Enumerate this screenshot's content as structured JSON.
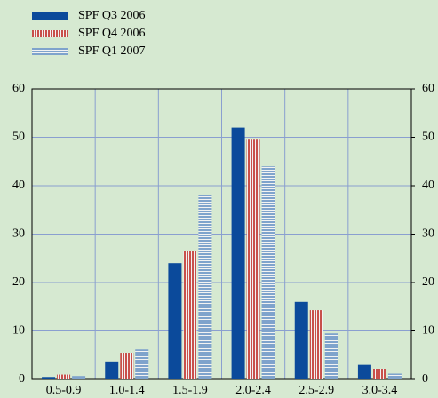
{
  "chart_data": {
    "type": "bar",
    "categories": [
      "0.5-0.9",
      "1.0-1.4",
      "1.5-1.9",
      "2.0-2.4",
      "2.5-2.9",
      "3.0-3.4"
    ],
    "series": [
      {
        "name": "SPF Q3 2006",
        "color": "#0b4a9b",
        "hatch": "none",
        "values": [
          0.5,
          3.7,
          24,
          52,
          16,
          3
        ]
      },
      {
        "name": "SPF Q4 2006",
        "color": "#c8504b",
        "hatch": "vertical",
        "values": [
          1,
          5.5,
          26.5,
          49.5,
          14.3,
          2.2
        ]
      },
      {
        "name": "SPF Q1 2007",
        "color": "#7fa3cc",
        "hatch": "horizontal",
        "values": [
          0.7,
          6.2,
          38,
          44,
          9.5,
          1.2
        ]
      }
    ],
    "ylim": [
      0,
      60
    ],
    "yticks": [
      0,
      10,
      20,
      30,
      40,
      50,
      60
    ],
    "y2lim": [
      0,
      60
    ],
    "y2ticks": [
      0,
      10,
      20,
      30,
      40,
      50,
      60
    ],
    "grid": true,
    "legend": "top-left"
  }
}
